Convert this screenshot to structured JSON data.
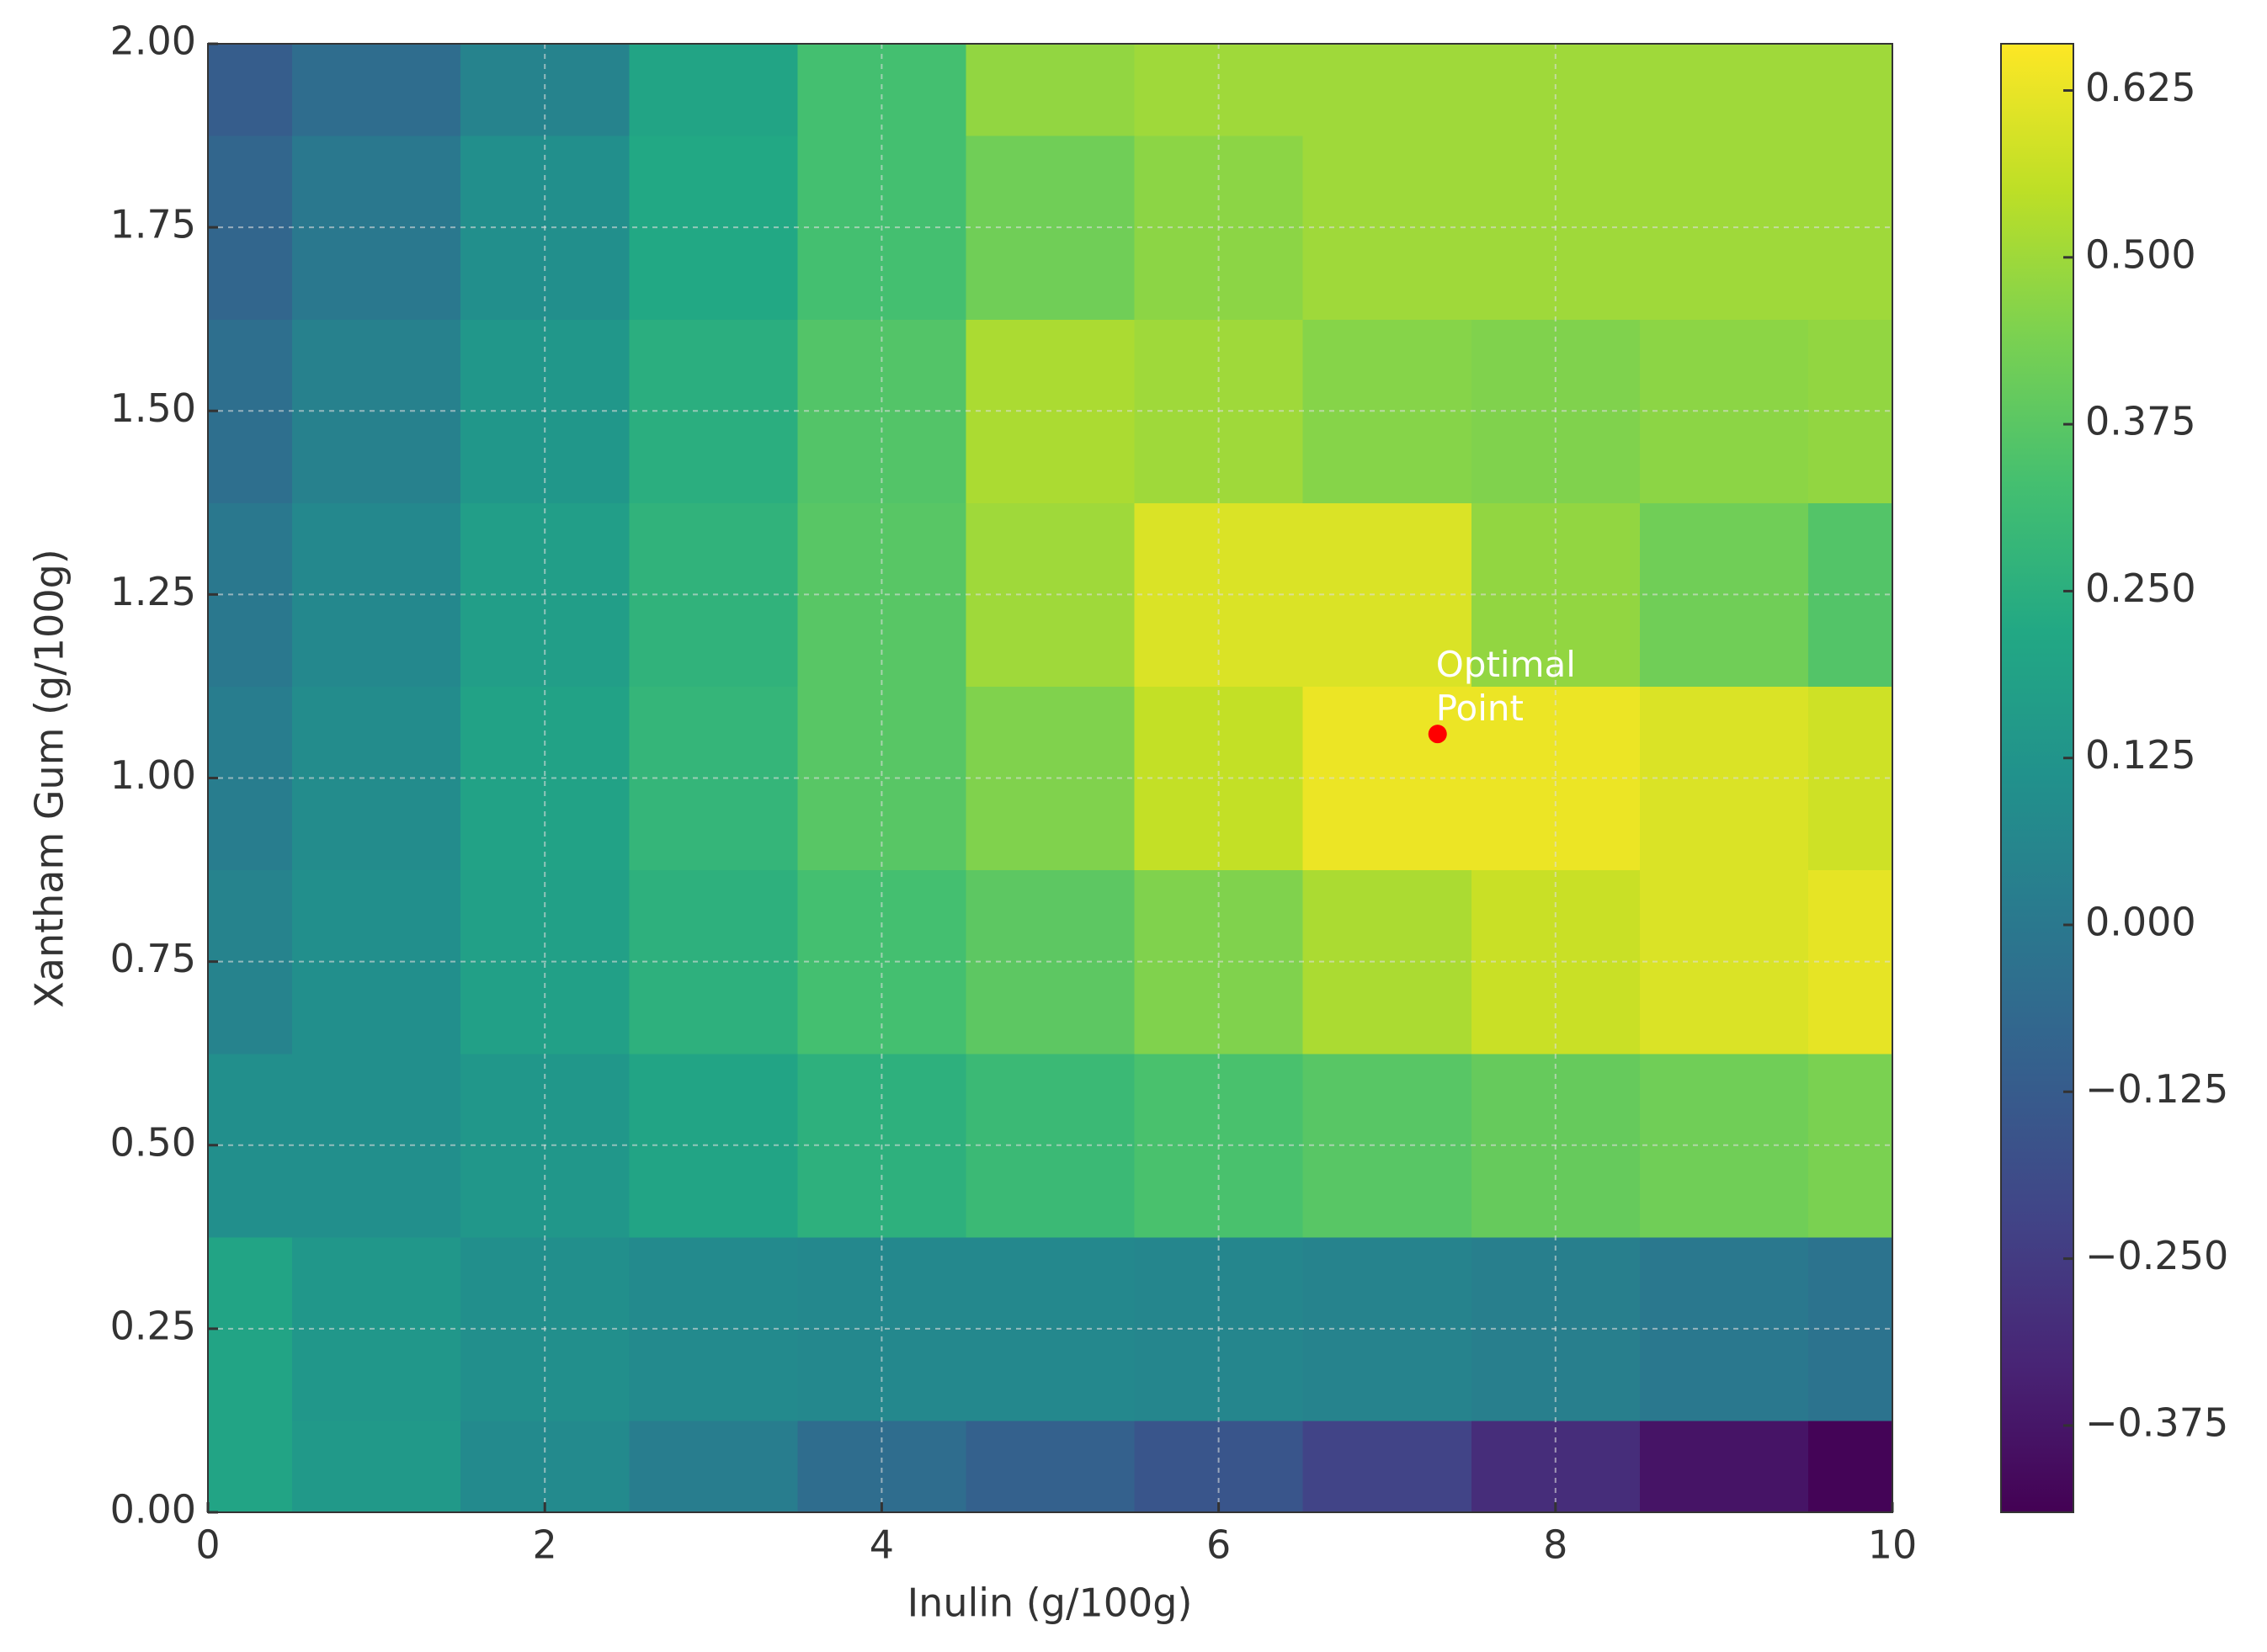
{
  "chart_data": {
    "type": "contour",
    "x": [
      0,
      1,
      2,
      3,
      4,
      5,
      6,
      7,
      8,
      9,
      10
    ],
    "y": [
      0,
      0.25,
      0.5,
      0.75,
      1.0,
      1.25,
      1.5,
      1.75,
      2.0
    ],
    "z": [
      [
        0.2,
        0.15,
        0.08,
        0.02,
        -0.05,
        -0.1,
        -0.15,
        -0.22,
        -0.3,
        -0.38,
        -0.43
      ],
      [
        0.2,
        0.14,
        0.1,
        0.08,
        0.07,
        0.07,
        0.06,
        0.05,
        0.03,
        0.0,
        -0.02
      ],
      [
        0.1,
        0.1,
        0.14,
        0.2,
        0.26,
        0.3,
        0.34,
        0.37,
        0.4,
        0.42,
        0.44
      ],
      [
        0.05,
        0.1,
        0.18,
        0.26,
        0.33,
        0.38,
        0.45,
        0.52,
        0.57,
        0.6,
        0.62
      ],
      [
        0.02,
        0.09,
        0.19,
        0.28,
        0.37,
        0.45,
        0.56,
        0.63,
        0.63,
        0.6,
        0.58
      ],
      [
        0.0,
        0.07,
        0.17,
        0.27,
        0.37,
        0.5,
        0.6,
        0.6,
        0.48,
        0.42,
        0.36
      ],
      [
        -0.04,
        0.04,
        0.14,
        0.25,
        0.36,
        0.52,
        0.5,
        0.46,
        0.45,
        0.47,
        0.48
      ],
      [
        -0.08,
        0.0,
        0.1,
        0.22,
        0.33,
        0.42,
        0.47,
        0.5,
        0.5,
        0.5,
        0.5
      ],
      [
        -0.12,
        -0.05,
        0.05,
        0.2,
        0.33,
        0.48,
        0.5,
        0.5,
        0.5,
        0.5,
        0.5
      ]
    ],
    "colormap": "viridis",
    "xlabel": "Inulin (g/100g)",
    "ylabel": "Xantham Gum (g/100g)",
    "xlim": [
      0,
      10
    ],
    "ylim": [
      0,
      2
    ],
    "xticks": [
      0,
      2,
      4,
      6,
      8,
      10
    ],
    "yticks": [
      {
        "value": 0,
        "label": "0.00"
      },
      {
        "value": 0.25,
        "label": "0.25"
      },
      {
        "value": 0.5,
        "label": "0.50"
      },
      {
        "value": 0.75,
        "label": "0.75"
      },
      {
        "value": 1.0,
        "label": "1.00"
      },
      {
        "value": 1.25,
        "label": "1.25"
      },
      {
        "value": 1.5,
        "label": "1.50"
      },
      {
        "value": 1.75,
        "label": "1.75"
      },
      {
        "value": 2.0,
        "label": "2.00"
      }
    ],
    "zlim": [
      -0.44,
      0.66
    ],
    "zticks": [
      {
        "value": -0.375,
        "label": "−0.375"
      },
      {
        "value": -0.25,
        "label": "−0.250"
      },
      {
        "value": -0.125,
        "label": "−0.125"
      },
      {
        "value": 0,
        "label": "0.000"
      },
      {
        "value": 0.125,
        "label": "0.125"
      },
      {
        "value": 0.25,
        "label": "0.250"
      },
      {
        "value": 0.375,
        "label": "0.375"
      },
      {
        "value": 0.5,
        "label": "0.500"
      },
      {
        "value": 0.625,
        "label": "0.625"
      }
    ],
    "grid": true,
    "point": {
      "x": 7.3,
      "y": 1.06,
      "color": "#ff0000",
      "label": "Optimal\nPoint"
    }
  }
}
